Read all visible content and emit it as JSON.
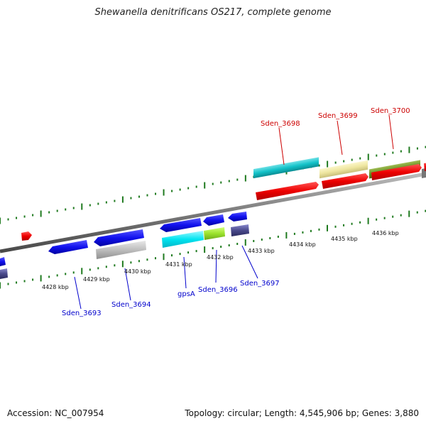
{
  "title": "Shewanella denitrificans OS217, complete genome",
  "footer": {
    "accession": "Accession: NC_007954",
    "summary": "Topology: circular; Length: 4,545,906 bp; Genes: 3,880"
  },
  "colors": {
    "backbone": "#7a7a7a",
    "tick": "#1f7a1f",
    "label_red": "#cc0000",
    "label_blue": "#0000cc"
  },
  "scale_labels": [
    {
      "text": "4428 kbp"
    },
    {
      "text": "4429 kbp"
    },
    {
      "text": "4430 kbp"
    },
    {
      "text": "4431 kbp"
    },
    {
      "text": "4432 kbp"
    },
    {
      "text": "4433 kbp"
    },
    {
      "text": "4434 kbp"
    },
    {
      "text": "4435 kbp"
    },
    {
      "text": "4436 kbp"
    }
  ],
  "genes": [
    {
      "label": "Sden_3698",
      "strand": "red-label",
      "color": "#12c2c8"
    },
    {
      "label": "Sden_3699",
      "strand": "red-label",
      "color": "#eee6a0"
    },
    {
      "label": "Sden_3700",
      "strand": "red-label",
      "color": "#6b8e23"
    },
    {
      "label": "Sden_3693",
      "strand": "blue-label",
      "color": "#1111ee"
    },
    {
      "label": "Sden_3694",
      "strand": "blue-label",
      "color": "#bdbdbd"
    },
    {
      "label": "gpsA",
      "strand": "blue-label",
      "color": "#00ffff"
    },
    {
      "label": "Sden_3696",
      "strand": "blue-label",
      "color": "#9be22d"
    },
    {
      "label": "Sden_3697",
      "strand": "blue-label",
      "color": "#4a4a8c"
    }
  ]
}
